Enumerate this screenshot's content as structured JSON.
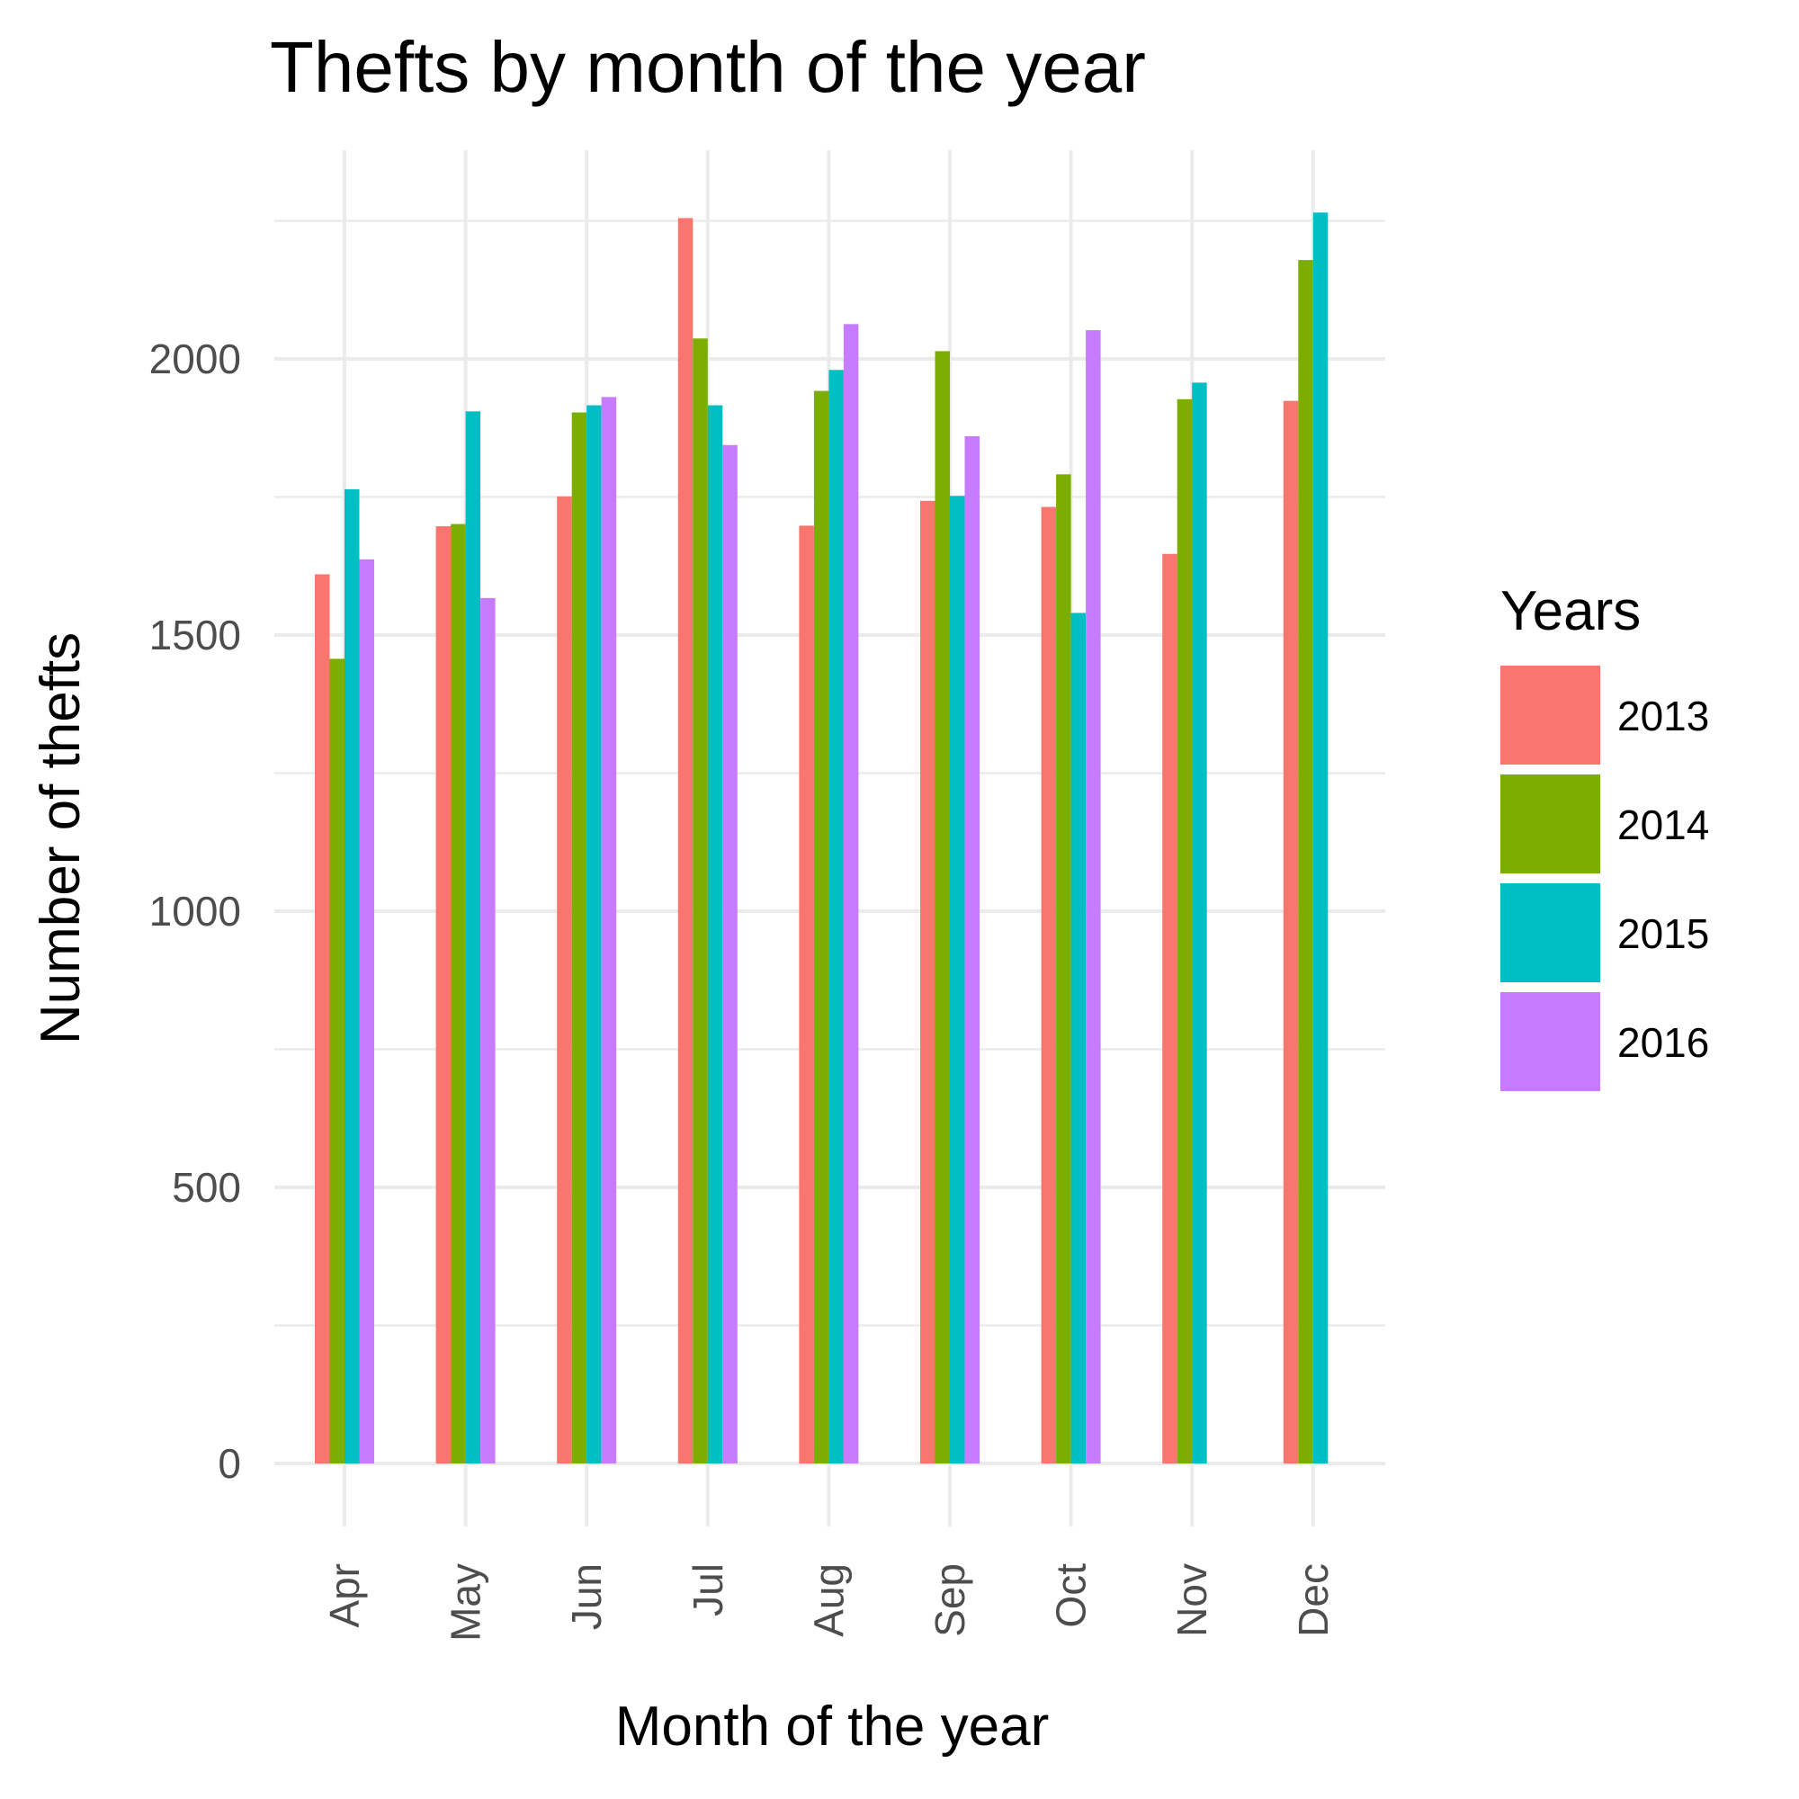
{
  "chart_data": {
    "type": "bar",
    "title": "Thefts by month of the year",
    "xlabel": "Month of the year",
    "ylabel": "Number of thefts",
    "categories": [
      "Apr",
      "May",
      "Jun",
      "Jul",
      "Aug",
      "Sep",
      "Oct",
      "Nov",
      "Dec"
    ],
    "ylim": [
      -100,
      2375
    ],
    "yticks": [
      0,
      500,
      1000,
      1500,
      2000
    ],
    "grid": true,
    "legend": {
      "title": "Years",
      "position": "right"
    },
    "series": [
      {
        "name": "2013",
        "color": "#F8766D",
        "values": [
          1610,
          1697,
          1751,
          2255,
          1698,
          1743,
          1732,
          1647,
          1924
        ]
      },
      {
        "name": "2014",
        "color": "#7CAE00",
        "values": [
          1457,
          1701,
          1903,
          2037,
          1942,
          2014,
          1791,
          1927,
          2179
        ]
      },
      {
        "name": "2015",
        "color": "#00BFC4",
        "values": [
          1764,
          1905,
          1916,
          1916,
          1980,
          1752,
          1540,
          1957,
          2265
        ]
      },
      {
        "name": "2016",
        "color": "#C77CFF",
        "values": [
          1637,
          1567,
          1931,
          1844,
          2063,
          1860,
          2052,
          null,
          null
        ]
      }
    ]
  }
}
